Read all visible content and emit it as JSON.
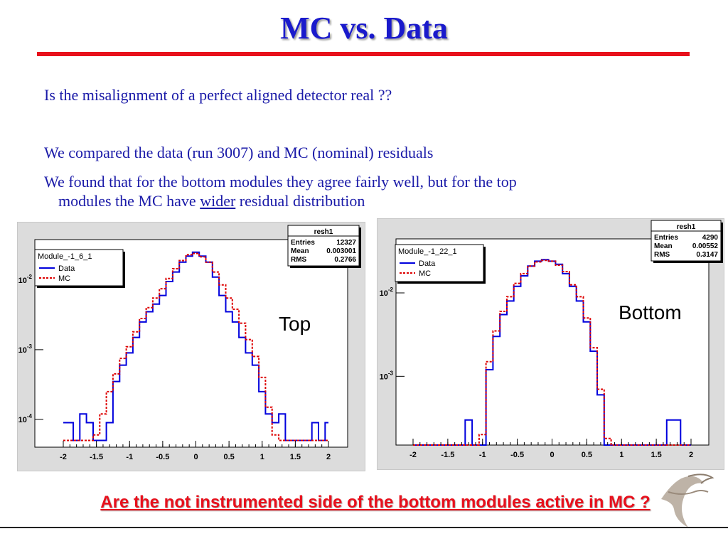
{
  "slide": {
    "title": "MC vs. Data",
    "bullet1": "Is the misalignment of a perfect aligned detector real ??",
    "bullet2": "We compared the data (run 3007) and MC (nominal) residuals",
    "bullet3_line1": "We found that for the bottom modules they agree fairly well, but for the top",
    "bullet3_pre": "modules the MC have ",
    "bullet3_u": "wider",
    "bullet3_post": " residual distribution",
    "label_top": "Top",
    "label_bottom": "Bottom",
    "question": "Are the not instrumented side of the bottom modules active in MC ?",
    "colors": {
      "title": "#1a1acc",
      "rule": "#e8101c",
      "data_line": "#0000dd",
      "mc_line": "#dd0000"
    }
  },
  "chart_data": [
    {
      "type": "line",
      "xlim": [
        -2,
        2
      ],
      "log_y": true,
      "ylim": [
        4e-05,
        0.03
      ],
      "x_ticks": [
        "-2",
        "-1.5",
        "-1",
        "-0.5",
        "0",
        "0.5",
        "1",
        "1.5",
        "2"
      ],
      "y_ticks": [
        {
          "base": "10",
          "exp": "-2",
          "value": 0.01
        },
        {
          "base": "10",
          "exp": "-3",
          "value": 0.001
        },
        {
          "base": "10",
          "exp": "-4",
          "value": 0.0001
        }
      ],
      "legend": {
        "title": "Module_-1_6_1",
        "placement": "top-left",
        "entries": [
          "Data",
          "MC"
        ]
      },
      "stats": {
        "title": "resh1",
        "rows": [
          [
            "Entries",
            "12327"
          ],
          [
            "Mean",
            "0.003001"
          ],
          [
            "RMS",
            "0.2766"
          ]
        ]
      },
      "x": [
        -2.0,
        -1.9,
        -1.8,
        -1.7,
        -1.6,
        -1.5,
        -1.4,
        -1.3,
        -1.2,
        -1.1,
        -1.0,
        -0.9,
        -0.8,
        -0.7,
        -0.6,
        -0.5,
        -0.4,
        -0.3,
        -0.2,
        -0.1,
        0.0,
        0.1,
        0.2,
        0.3,
        0.4,
        0.5,
        0.6,
        0.7,
        0.8,
        0.9,
        1.0,
        1.1,
        1.2,
        1.3,
        1.4,
        1.5,
        1.6,
        1.7,
        1.8,
        1.9,
        2.0
      ],
      "series": [
        {
          "name": "Data",
          "values": [
            9e-05,
            9e-05,
            5e-05,
            0.00012,
            9e-05,
            5e-05,
            5e-05,
            9e-05,
            0.00035,
            0.0006,
            0.0009,
            0.0015,
            0.0025,
            0.0035,
            0.0045,
            0.006,
            0.0095,
            0.013,
            0.018,
            0.022,
            0.025,
            0.022,
            0.018,
            0.011,
            0.006,
            0.0035,
            0.0025,
            0.0015,
            0.0009,
            0.0006,
            0.00025,
            0.00012,
            9e-05,
            0.00012,
            5e-05,
            5e-05,
            5e-05,
            5e-05,
            9e-05,
            5e-05,
            9e-05
          ]
        },
        {
          "name": "MC",
          "values": [
            5e-05,
            5e-05,
            5e-05,
            5e-05,
            5e-05,
            6e-05,
            0.00012,
            0.00025,
            0.00045,
            0.00075,
            0.0011,
            0.0018,
            0.0028,
            0.004,
            0.0055,
            0.0075,
            0.0105,
            0.0145,
            0.019,
            0.023,
            0.024,
            0.0215,
            0.018,
            0.013,
            0.0085,
            0.0055,
            0.0038,
            0.0024,
            0.0014,
            0.0008,
            0.0004,
            0.00015,
            6e-05,
            5e-05,
            5e-05,
            5e-05,
            5e-05,
            5e-05,
            5e-05,
            5e-05,
            5e-05
          ]
        }
      ]
    },
    {
      "type": "line",
      "xlim": [
        -2,
        2
      ],
      "log_y": true,
      "ylim": [
        0.00015,
        0.03
      ],
      "x_ticks": [
        "-2",
        "-1.5",
        "-1",
        "-0.5",
        "0",
        "0.5",
        "1",
        "1.5",
        "2"
      ],
      "y_ticks": [
        {
          "base": "10",
          "exp": "-2",
          "value": 0.01
        },
        {
          "base": "10",
          "exp": "-3",
          "value": 0.001
        }
      ],
      "legend": {
        "title": "Module_-1_22_1",
        "placement": "top-left",
        "entries": [
          "Data",
          "MC"
        ]
      },
      "stats": {
        "title": "resh1",
        "rows": [
          [
            "Entries",
            "4290"
          ],
          [
            "Mean",
            "0.00552"
          ],
          [
            "RMS",
            "0.3147"
          ]
        ]
      },
      "x": [
        -2.0,
        -1.9,
        -1.8,
        -1.7,
        -1.6,
        -1.5,
        -1.4,
        -1.3,
        -1.2,
        -1.1,
        -1.0,
        -0.9,
        -0.8,
        -0.7,
        -0.6,
        -0.5,
        -0.4,
        -0.3,
        -0.2,
        -0.1,
        0.0,
        0.1,
        0.2,
        0.3,
        0.4,
        0.5,
        0.6,
        0.7,
        0.8,
        0.9,
        1.0,
        1.1,
        1.2,
        1.3,
        1.4,
        1.5,
        1.6,
        1.7,
        1.8,
        1.9,
        2.0
      ],
      "series": [
        {
          "name": "Data",
          "values": [
            0.00015,
            0.00015,
            0.00015,
            0.00015,
            0.00015,
            0.00015,
            0.00015,
            0.00015,
            0.0003,
            0.00015,
            0.00015,
            0.0012,
            0.003,
            0.0055,
            0.008,
            0.012,
            0.016,
            0.021,
            0.024,
            0.025,
            0.024,
            0.022,
            0.017,
            0.012,
            0.008,
            0.0045,
            0.002,
            0.0006,
            0.00015,
            0.00015,
            0.00015,
            0.00015,
            0.00015,
            0.00015,
            0.00015,
            0.00015,
            0.00015,
            0.0003,
            0.0003,
            0.00015,
            0.00015
          ]
        },
        {
          "name": "MC",
          "values": [
            0.00015,
            0.00015,
            0.00015,
            0.00015,
            0.00015,
            0.00015,
            0.00015,
            0.00015,
            0.00015,
            0.00015,
            0.0002,
            0.0015,
            0.0035,
            0.006,
            0.009,
            0.013,
            0.017,
            0.021,
            0.0235,
            0.0245,
            0.024,
            0.0215,
            0.018,
            0.0125,
            0.009,
            0.005,
            0.0022,
            0.0007,
            0.00018,
            0.00015,
            0.00015,
            0.00015,
            0.00015,
            0.00015,
            0.00015,
            0.00015,
            0.00015,
            0.00015,
            0.00015,
            0.00015,
            0.00015
          ]
        }
      ]
    }
  ]
}
